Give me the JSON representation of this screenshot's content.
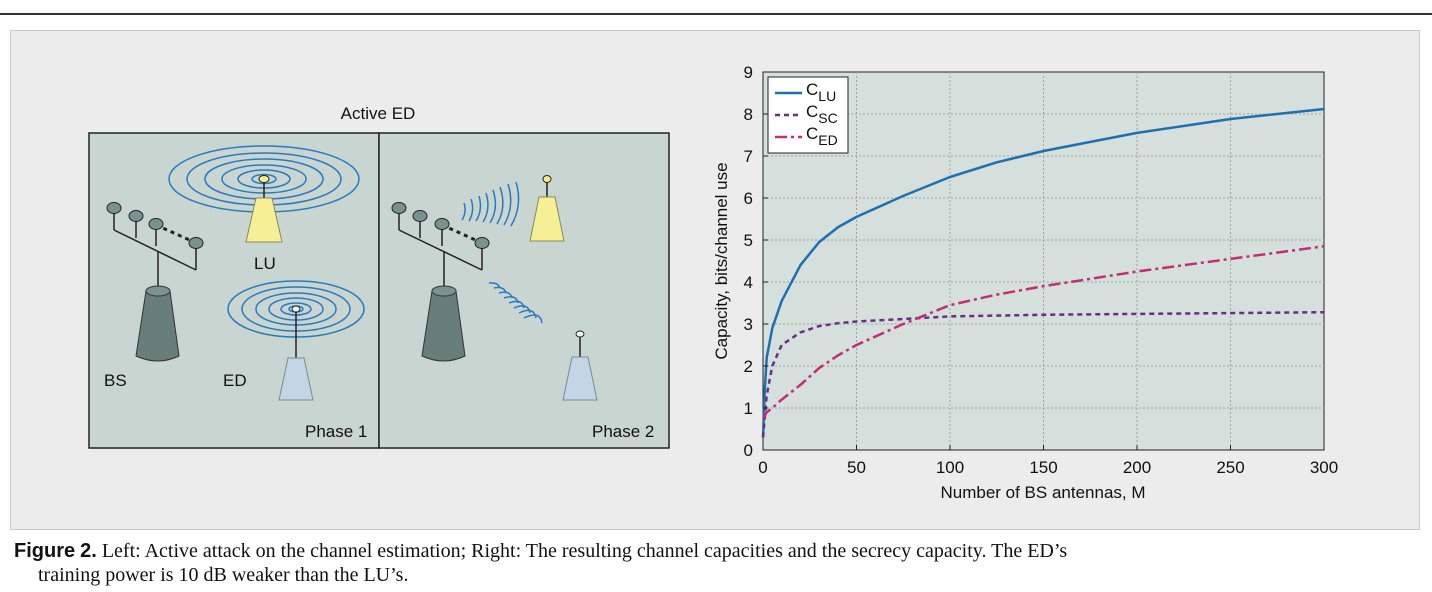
{
  "diagram": {
    "title": "Active ED",
    "labels": {
      "lu": "LU",
      "bs": "BS",
      "ed": "ED",
      "phase1": "Phase 1",
      "phase2": "Phase 2"
    }
  },
  "chart_data": {
    "type": "line",
    "xlabel": "Number of BS antennas, M",
    "ylabel": "Capacity, bits/channel use",
    "xlim": [
      0,
      300
    ],
    "ylim": [
      0,
      9
    ],
    "xticks": [
      0,
      50,
      100,
      150,
      200,
      250,
      300
    ],
    "yticks": [
      0,
      1,
      2,
      3,
      4,
      5,
      6,
      7,
      8,
      9
    ],
    "grid": true,
    "legend_position": "top-left",
    "series": [
      {
        "name": "C",
        "sub": "LU",
        "color": "#1f6fad",
        "dash": "solid",
        "x": [
          0,
          1,
          2,
          5,
          10,
          20,
          30,
          40,
          50,
          75,
          100,
          125,
          150,
          200,
          250,
          300
        ],
        "y": [
          0.3,
          1.5,
          2.2,
          2.9,
          3.55,
          4.4,
          4.95,
          5.3,
          5.55,
          6.05,
          6.5,
          6.85,
          7.12,
          7.55,
          7.88,
          8.12
        ]
      },
      {
        "name": "C",
        "sub": "SC",
        "color": "#6a2f7f",
        "dash": "dotted",
        "x": [
          0,
          2,
          5,
          10,
          20,
          30,
          40,
          50,
          75,
          100,
          150,
          200,
          250,
          300
        ],
        "y": [
          0.3,
          1.3,
          2.0,
          2.5,
          2.8,
          2.95,
          3.02,
          3.06,
          3.12,
          3.18,
          3.22,
          3.24,
          3.26,
          3.28
        ]
      },
      {
        "name": "C",
        "sub": "ED",
        "color": "#c03070",
        "dash": "dashdot",
        "x": [
          0,
          2,
          5,
          10,
          20,
          30,
          40,
          50,
          75,
          100,
          125,
          150,
          200,
          250,
          300
        ],
        "y": [
          0.75,
          0.9,
          1.0,
          1.2,
          1.55,
          1.95,
          2.25,
          2.5,
          3.0,
          3.45,
          3.7,
          3.9,
          4.25,
          4.55,
          4.85
        ]
      }
    ]
  },
  "caption": {
    "label": "Figure",
    "number": "2.",
    "text_line1": " Left: Active attack on the channel estimation; Right: The resulting channel capacities and the secrecy capacity. The ED’s",
    "text_line2": "training power is 10 dB weaker than the LU’s."
  }
}
